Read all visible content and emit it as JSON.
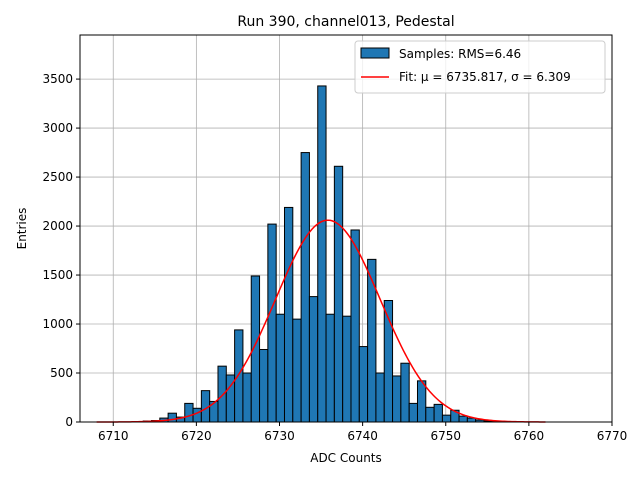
{
  "chart_data": {
    "type": "bar",
    "title": "Run 390, channel013, Pedestal",
    "xlabel": "ADC Counts",
    "ylabel": "Entries",
    "xlim": [
      6706.0,
      6770.0
    ],
    "ylim": [
      0,
      3950
    ],
    "xticks": [
      6710,
      6720,
      6730,
      6740,
      6750,
      6760,
      6770
    ],
    "yticks": [
      0,
      500,
      1000,
      1500,
      2000,
      2500,
      3000,
      3500
    ],
    "grid": true,
    "legend_position": "top-right",
    "bin_edges": [
      6712.6,
      6713.6,
      6714.6,
      6715.6,
      6716.6,
      6717.6,
      6718.6,
      6719.6,
      6720.6,
      6721.6,
      6722.6,
      6723.6,
      6724.6,
      6725.6,
      6726.6,
      6727.6,
      6728.6,
      6729.6,
      6730.6,
      6731.6,
      6732.6,
      6733.6,
      6734.6,
      6735.6,
      6736.6,
      6737.6,
      6738.6,
      6739.6,
      6740.6,
      6741.6,
      6742.6,
      6743.6,
      6744.6,
      6745.6,
      6746.6,
      6747.6,
      6748.6,
      6749.6,
      6750.6,
      6751.6,
      6752.6,
      6753.6,
      6754.6,
      6755.6,
      6756.6,
      6757.6
    ],
    "series": [
      {
        "name": "Samples: RMS=6.46",
        "kind": "histogram",
        "color": "#1f77b4",
        "edgecolor": "#000000",
        "values": [
          5,
          10,
          15,
          40,
          90,
          50,
          190,
          140,
          320,
          210,
          570,
          480,
          940,
          500,
          1490,
          740,
          2020,
          1100,
          2190,
          1050,
          2750,
          1280,
          3430,
          1100,
          2610,
          1080,
          1960,
          770,
          1660,
          500,
          1240,
          470,
          600,
          190,
          420,
          150,
          180,
          70,
          120,
          60,
          40,
          20,
          10,
          5,
          3
        ]
      },
      {
        "name": "Fit: μ = 6735.817, σ = 6.309",
        "kind": "gaussian_fit",
        "color": "#ff0000",
        "mu": 6735.817,
        "sigma": 6.309,
        "amplitude": 2060,
        "x_range": [
          6708,
          6762
        ]
      }
    ]
  }
}
